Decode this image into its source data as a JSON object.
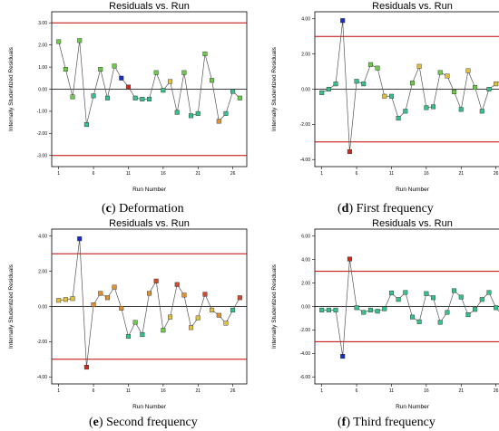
{
  "chart_data": [
    {
      "type": "scatter",
      "title": "Residuals vs. Run",
      "xlabel": "Run Number",
      "ylabel": "Internally Studentized Residuals",
      "caption_letter": "c",
      "caption_text": "Deformation",
      "xlim": [
        0,
        28
      ],
      "ylim": [
        -3.5,
        3.5
      ],
      "x_ticks": [
        1,
        6,
        11,
        16,
        21,
        26
      ],
      "y_ticks": [
        -3,
        -2,
        -1,
        0,
        1,
        2,
        3
      ],
      "y_tick_labels": [
        "-3.00",
        "-2.00",
        "-1.00",
        "0.00",
        "1.00",
        "2.00",
        "3.00"
      ],
      "limit_lines": [
        3,
        -3
      ],
      "x": [
        1,
        2,
        3,
        4,
        5,
        6,
        7,
        8,
        9,
        10,
        11,
        12,
        13,
        14,
        15,
        16,
        17,
        18,
        19,
        20,
        21,
        22,
        23,
        24,
        25,
        26,
        27
      ],
      "values": [
        2.15,
        0.9,
        -0.35,
        2.2,
        -1.6,
        -0.3,
        0.9,
        -0.4,
        1.05,
        0.5,
        0.1,
        -0.4,
        -0.45,
        -0.45,
        0.75,
        -0.05,
        0.35,
        -1.05,
        0.75,
        -1.2,
        -1.1,
        1.6,
        0.4,
        -1.45,
        -1.1,
        -0.1,
        -0.4
      ],
      "colors": [
        "#6ccc4a",
        "#6ccc4a",
        "#6ccc4a",
        "#6ccc4a",
        "#36c08a",
        "#36c08a",
        "#6ccc4a",
        "#36c08a",
        "#6ccc4a",
        "#1a2ec0",
        "#d02a1a",
        "#36c08a",
        "#36c08a",
        "#36c08a",
        "#6ccc4a",
        "#36c08a",
        "#e0c040",
        "#36c08a",
        "#6ccc4a",
        "#36c08a",
        "#36c08a",
        "#6ccc4a",
        "#6ccc4a",
        "#e09030",
        "#36c08a",
        "#36c08a",
        "#6ccc4a"
      ]
    },
    {
      "type": "scatter",
      "title": "Residuals vs. Run",
      "xlabel": "Run Number",
      "ylabel": "Internally Studentized Residuals",
      "caption_letter": "d",
      "caption_text": "First frequency",
      "xlim": [
        0,
        28
      ],
      "ylim": [
        -4.4,
        4.4
      ],
      "x_ticks": [
        1,
        6,
        11,
        16,
        21,
        26
      ],
      "y_ticks": [
        -4,
        -2,
        0,
        2,
        4
      ],
      "y_tick_labels": [
        "-4.00",
        "-2.00",
        "0.00",
        "2.00",
        "4.00"
      ],
      "limit_lines": [
        3,
        -3
      ],
      "x": [
        1,
        2,
        3,
        4,
        5,
        6,
        7,
        8,
        9,
        10,
        11,
        12,
        13,
        14,
        15,
        16,
        17,
        18,
        19,
        20,
        21,
        22,
        23,
        24,
        25,
        26,
        27
      ],
      "values": [
        -0.2,
        0,
        0.3,
        3.9,
        -3.55,
        0.45,
        0.3,
        1.4,
        1.2,
        -0.4,
        -0.4,
        -1.65,
        -1.25,
        0.35,
        1.3,
        -1.05,
        -1.0,
        0.95,
        0.75,
        -0.15,
        -1.15,
        1.05,
        0.1,
        -1.25,
        0,
        0.3,
        0.55
      ],
      "colors": [
        "#36c08a",
        "#36c08a",
        "#36c08a",
        "#1a2ec0",
        "#d02a1a",
        "#36c08a",
        "#36c08a",
        "#6ccc4a",
        "#6ccc4a",
        "#e0c040",
        "#36c08a",
        "#36c08a",
        "#36c08a",
        "#6ccc4a",
        "#e0c040",
        "#36c08a",
        "#36c08a",
        "#6ccc4a",
        "#e0c040",
        "#6ccc4a",
        "#36c08a",
        "#e0c040",
        "#6ccc4a",
        "#36c08a",
        "#36c08a",
        "#e0c040",
        "#e0c040"
      ]
    },
    {
      "type": "scatter",
      "title": "Residuals vs. Run",
      "xlabel": "Run Number",
      "ylabel": "Internally Studentized Residuals",
      "caption_letter": "e",
      "caption_text": "Second frequency",
      "xlim": [
        0,
        28
      ],
      "ylim": [
        -4.4,
        4.4
      ],
      "x_ticks": [
        1,
        6,
        11,
        16,
        21,
        26
      ],
      "y_ticks": [
        -4,
        -2,
        0,
        2,
        4
      ],
      "y_tick_labels": [
        "-4.00",
        "-2.00",
        "0.00",
        "2.00",
        "4.00"
      ],
      "limit_lines": [
        3,
        -3
      ],
      "x": [
        1,
        2,
        3,
        4,
        5,
        6,
        7,
        8,
        9,
        10,
        11,
        12,
        13,
        14,
        15,
        16,
        17,
        18,
        19,
        20,
        21,
        22,
        23,
        24,
        25,
        26,
        27
      ],
      "values": [
        0.35,
        0.4,
        0.45,
        3.85,
        -3.45,
        0.1,
        0.75,
        0.5,
        1.1,
        -0.1,
        -1.7,
        -0.9,
        -1.6,
        0.75,
        1.45,
        -1.35,
        -0.6,
        1.25,
        0.65,
        -1.2,
        -0.65,
        0.7,
        -0.2,
        -0.5,
        -0.95,
        -0.2,
        0.5
      ],
      "colors": [
        "#e0c040",
        "#e0c040",
        "#e0c040",
        "#1a2ec0",
        "#d02a1a",
        "#e09030",
        "#e09030",
        "#e09030",
        "#e09030",
        "#e09030",
        "#36c08a",
        "#6ccc4a",
        "#36c08a",
        "#e09030",
        "#d04a30",
        "#6ccc4a",
        "#e0c040",
        "#d04a30",
        "#e09030",
        "#e0c040",
        "#e0c040",
        "#d04a30",
        "#e0c040",
        "#e09030",
        "#e0c040",
        "#36c08a",
        "#d04a30"
      ]
    },
    {
      "type": "scatter",
      "title": "Residuals vs. Run",
      "xlabel": "Run Number",
      "ylabel": "Internally Studentized Residuals",
      "caption_letter": "f",
      "caption_text": "Third frequency",
      "xlim": [
        0,
        28
      ],
      "ylim": [
        -6.6,
        6.6
      ],
      "x_ticks": [
        1,
        6,
        11,
        16,
        21,
        26
      ],
      "y_ticks": [
        -6,
        -4,
        -2,
        0,
        2,
        4,
        6
      ],
      "y_tick_labels": [
        "-6.00",
        "-4.00",
        "-2.00",
        "0.00",
        "2.00",
        "4.00",
        "6.00"
      ],
      "limit_lines": [
        3,
        -3
      ],
      "x": [
        1,
        2,
        3,
        4,
        5,
        6,
        7,
        8,
        9,
        10,
        11,
        12,
        13,
        14,
        15,
        16,
        17,
        18,
        19,
        20,
        21,
        22,
        23,
        24,
        25,
        26,
        27
      ],
      "values": [
        -0.3,
        -0.3,
        -0.3,
        -4.25,
        4.05,
        -0.1,
        -0.5,
        -0.3,
        -0.4,
        -0.2,
        1.15,
        0.6,
        1.2,
        -0.9,
        -1.3,
        1.1,
        0.75,
        -1.35,
        -0.5,
        1.35,
        0.8,
        -0.7,
        -0.25,
        0.6,
        1.2,
        -0.1,
        -0.8
      ],
      "colors": [
        "#36c08a",
        "#36c08a",
        "#36c08a",
        "#1a2ec0",
        "#d02a1a",
        "#36c08a",
        "#36c08a",
        "#36c08a",
        "#36c08a",
        "#36c08a",
        "#36c08a",
        "#36c08a",
        "#36c08a",
        "#36c08a",
        "#36c08a",
        "#36c08a",
        "#36c08a",
        "#36c08a",
        "#36c08a",
        "#36c08a",
        "#36c08a",
        "#36c08a",
        "#36c08a",
        "#36c08a",
        "#36c08a",
        "#36c08a",
        "#36c08a"
      ]
    }
  ],
  "colors": {
    "limit_line": "#c00000",
    "frame": "#000000",
    "series_line": "#555555"
  }
}
